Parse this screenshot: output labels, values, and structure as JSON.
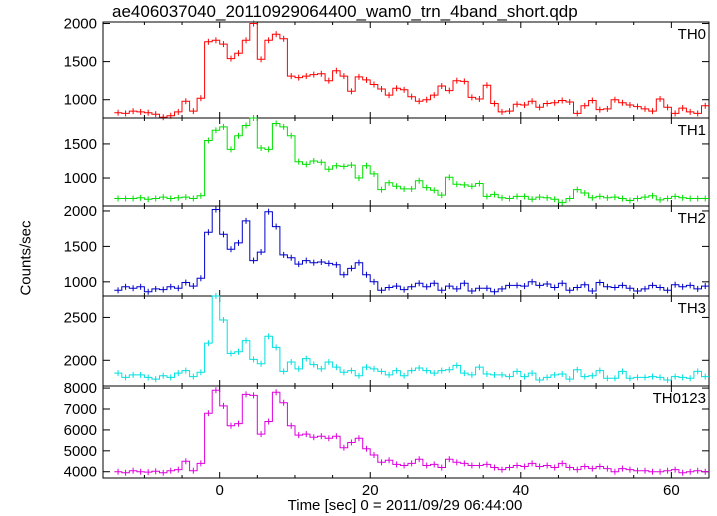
{
  "title": "ae406037040_20110929064400_wam0_trn_4band_short.qdp",
  "ylabel": "Counts/sec",
  "xlabel": "Time [sec] 0 = 2011/09/29 06:44:00",
  "chart_data": {
    "type": "line",
    "step": true,
    "x_ticks": [
      0,
      20,
      40,
      60
    ],
    "xlim": [
      -15.5,
      65
    ],
    "x_start": -14,
    "bin_width": 1.0,
    "grid": false,
    "panels": [
      {
        "name": "TH0",
        "color": "#ff0000",
        "ylim": [
          760,
          2020
        ],
        "y_ticks": [
          1000,
          1500,
          2000
        ],
        "y_tick_labels": [
          "1000",
          "1500",
          "2000"
        ],
        "values": [
          830,
          820,
          850,
          840,
          830,
          810,
          770,
          790,
          840,
          980,
          850,
          1020,
          1760,
          1780,
          1730,
          1540,
          1610,
          1780,
          2000,
          1530,
          1780,
          1860,
          1800,
          1310,
          1290,
          1310,
          1330,
          1340,
          1250,
          1380,
          1310,
          1110,
          1300,
          1260,
          1200,
          1140,
          1060,
          1150,
          1130,
          1040,
          980,
          1000,
          1060,
          1180,
          1120,
          1250,
          1240,
          1030,
          1010,
          1190,
          950,
          840,
          850,
          940,
          930,
          980,
          900,
          950,
          960,
          990,
          970,
          820,
          920,
          990,
          870,
          880,
          1000,
          960,
          930,
          910,
          880,
          850,
          1010,
          900,
          820,
          890,
          840,
          820,
          920
        ]
      },
      {
        "name": "TH1",
        "color": "#00e000",
        "ylim": [
          590,
          1880
        ],
        "y_ticks": [
          1000,
          1500
        ],
        "y_tick_labels": [
          "1000",
          "1500"
        ],
        "values": [
          700,
          700,
          700,
          710,
          690,
          700,
          720,
          700,
          710,
          720,
          700,
          740,
          1550,
          1700,
          1750,
          1420,
          1620,
          1770,
          1880,
          1440,
          1420,
          1800,
          1750,
          1620,
          1240,
          1200,
          1250,
          1230,
          1130,
          1180,
          1170,
          1190,
          1000,
          1180,
          1060,
          830,
          930,
          880,
          840,
          840,
          960,
          860,
          820,
          750,
          1010,
          910,
          900,
          880,
          920,
          730,
          760,
          710,
          700,
          730,
          730,
          690,
          720,
          710,
          690,
          640,
          700,
          830,
          780,
          710,
          730,
          710,
          720,
          700,
          670,
          700,
          720,
          740,
          680,
          700,
          730,
          710,
          700,
          700,
          700
        ]
      },
      {
        "name": "TH2",
        "color": "#0000cc",
        "ylim": [
          800,
          2070
        ],
        "y_ticks": [
          1000,
          1500,
          2000
        ],
        "y_tick_labels": [
          "1000",
          "1500",
          "2000"
        ],
        "values": [
          880,
          930,
          910,
          930,
          860,
          900,
          890,
          930,
          910,
          990,
          940,
          1050,
          1700,
          2020,
          1670,
          1460,
          1550,
          1860,
          1300,
          1420,
          1990,
          1780,
          1380,
          1340,
          1250,
          1300,
          1270,
          1280,
          1260,
          1240,
          1100,
          1190,
          1270,
          1100,
          1000,
          880,
          920,
          940,
          890,
          930,
          980,
          930,
          980,
          880,
          940,
          900,
          980,
          870,
          910,
          910,
          860,
          900,
          950,
          950,
          940,
          1000,
          950,
          970,
          920,
          980,
          880,
          920,
          960,
          870,
          990,
          930,
          920,
          950,
          910,
          870,
          900,
          950,
          920,
          880,
          960,
          930,
          950,
          900,
          940
        ]
      },
      {
        "name": "TH3",
        "color": "#00e0e0",
        "ylim": [
          1700,
          2750
        ],
        "y_ticks": [
          2000,
          2500
        ],
        "y_tick_labels": [
          "2000",
          "2500"
        ],
        "values": [
          1850,
          1800,
          1830,
          1830,
          1800,
          1780,
          1820,
          1800,
          1850,
          1880,
          1810,
          1860,
          2200,
          2750,
          2470,
          2080,
          2100,
          2230,
          2010,
          1960,
          2280,
          2150,
          1870,
          1980,
          1900,
          2020,
          1950,
          1900,
          1980,
          1920,
          1860,
          1880,
          1820,
          1920,
          1900,
          1870,
          1830,
          1880,
          1820,
          1880,
          1910,
          1880,
          1850,
          1880,
          1890,
          1940,
          1850,
          1830,
          1920,
          1840,
          1830,
          1830,
          1810,
          1870,
          1810,
          1850,
          1770,
          1800,
          1830,
          1840,
          1780,
          1890,
          1810,
          1820,
          1880,
          1790,
          1790,
          1870,
          1790,
          1800,
          1800,
          1810,
          1800,
          1770,
          1810,
          1800,
          1790,
          1870,
          1810
        ]
      },
      {
        "name": "TH0123",
        "color": "#dd00dd",
        "ylim": [
          3700,
          8100
        ],
        "y_ticks": [
          4000,
          5000,
          6000,
          7000,
          8000
        ],
        "y_tick_labels": [
          "4000",
          "5000",
          "6000",
          "7000",
          "8000"
        ],
        "values": [
          4000,
          3950,
          4050,
          4000,
          3980,
          4020,
          3950,
          4050,
          4100,
          4500,
          4050,
          4400,
          6800,
          7900,
          7150,
          6200,
          6300,
          7700,
          7650,
          5800,
          6400,
          7800,
          7300,
          6200,
          5750,
          5800,
          5650,
          5700,
          5600,
          5700,
          5150,
          5400,
          5600,
          5100,
          4800,
          4450,
          4550,
          4350,
          4300,
          4400,
          4600,
          4300,
          4350,
          4200,
          4600,
          4450,
          4400,
          4300,
          4300,
          4350,
          4200,
          4100,
          4200,
          4300,
          4250,
          4400,
          4250,
          4300,
          4200,
          4400,
          4200,
          4100,
          4250,
          4150,
          4250,
          4150,
          4000,
          4150,
          4100,
          4050,
          4050,
          4000,
          4000,
          4050,
          4100,
          3950,
          4000,
          4050,
          4000
        ]
      }
    ]
  }
}
